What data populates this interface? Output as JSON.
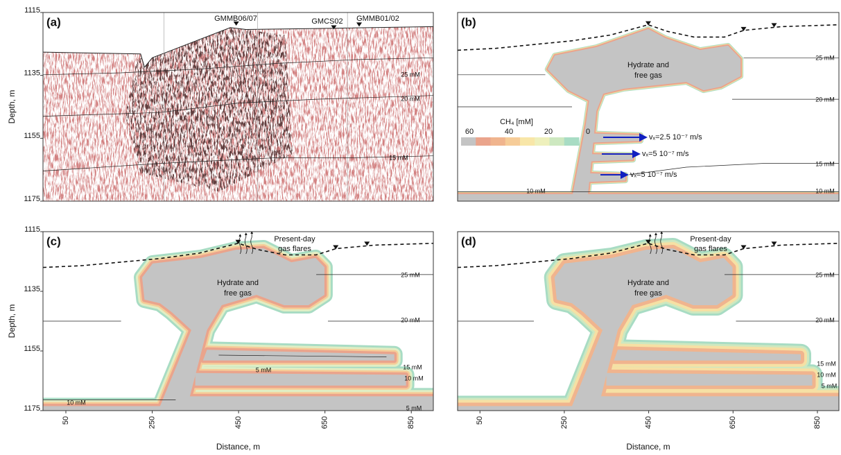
{
  "chart_data": [
    {
      "type": "seismic",
      "label": "(a)",
      "ylabel": "Depth, m",
      "xlim": [
        -3,
        901
      ],
      "ylim": [
        1115,
        1175
      ],
      "yticks": [
        1115,
        1135,
        1155,
        1175
      ],
      "annotations": [
        "GMMB06/07",
        "GMCS02",
        "GMMB01/02",
        "25 mM",
        "20 mM",
        "15 mM"
      ]
    },
    {
      "type": "model",
      "label": "(b)",
      "xlim": [
        -3,
        901
      ],
      "ylim": [
        1115,
        1175
      ],
      "hydrate_label": [
        "Hydrate and",
        "free gas"
      ],
      "colorbar": {
        "title": "CH₄ [mM]",
        "ticks": [
          60,
          40,
          20,
          0
        ],
        "colors": [
          "#c4c4c4",
          "#eaa48c",
          "#f0b48e",
          "#f6cc98",
          "#f8e6a8",
          "#eef0bc",
          "#cde8c0",
          "#a8dcc4"
        ]
      },
      "velocities": [
        "vₓ=2.5 10⁻⁷ m/s",
        "vₓ=5 10⁻⁷ m/s",
        "vₓ=5 10⁻⁷ m/s"
      ],
      "annotations": [
        "25 mM",
        "20 mM",
        "15 mM",
        "10 mM",
        "10 mM"
      ]
    },
    {
      "type": "model",
      "label": "(c)",
      "ylabel": "Depth, m",
      "xlabel": "Distance, m",
      "xlim": [
        -3,
        901
      ],
      "ylim": [
        1115,
        1175
      ],
      "yticks": [
        1115,
        1135,
        1155,
        1175
      ],
      "xticks": [
        50,
        250,
        450,
        650,
        850
      ],
      "hydrate_label": [
        "Hydrate and",
        "free gas"
      ],
      "flares_label": [
        "Present-day",
        "gas flares"
      ],
      "annotations": [
        "25 mM",
        "20 mM",
        "15 mM",
        "10 mM",
        "5 mM",
        "10 mM",
        "5 mM"
      ]
    },
    {
      "type": "model",
      "label": "(d)",
      "xlabel": "Distance, m",
      "xlim": [
        -3,
        901
      ],
      "ylim": [
        1115,
        1175
      ],
      "xticks": [
        50,
        250,
        450,
        650,
        850
      ],
      "hydrate_label": [
        "Hydrate and",
        "free gas"
      ],
      "flares_label": [
        "Present-day",
        "gas flares"
      ],
      "annotations": [
        "25 mM",
        "20 mM",
        "15 mM",
        "10 mM",
        "5 mM"
      ]
    }
  ]
}
